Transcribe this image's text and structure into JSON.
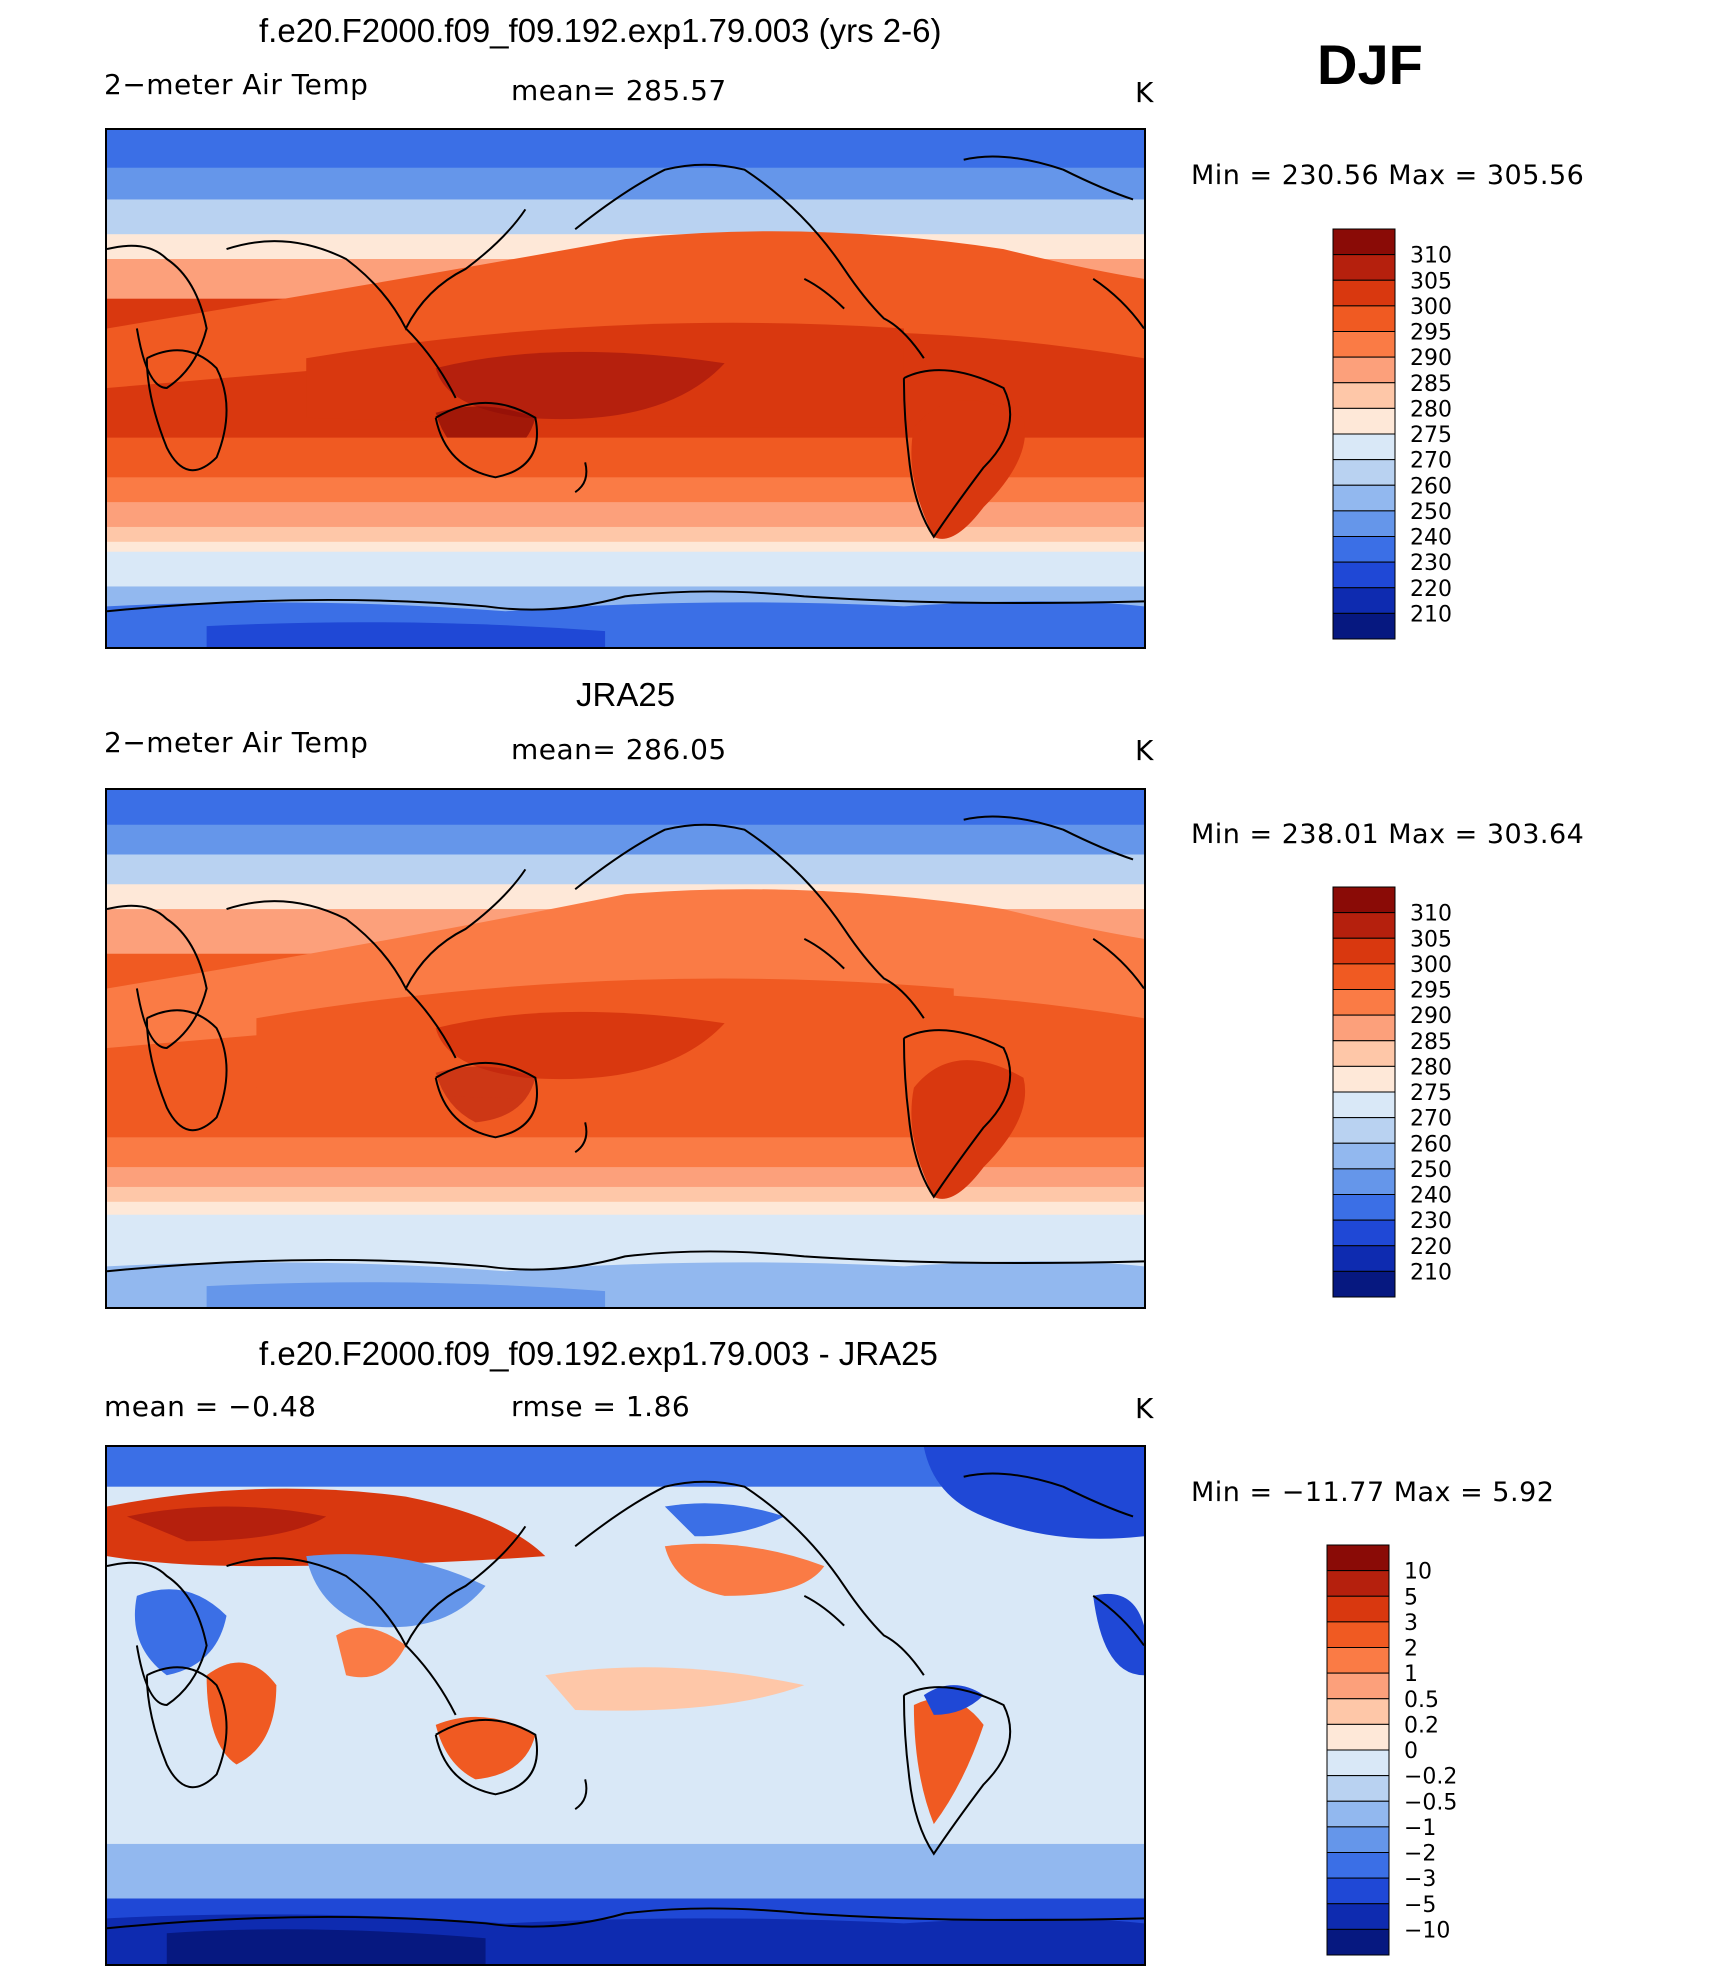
{
  "season": "DJF",
  "panels": [
    {
      "title": "f.e20.F2000.f09_f09.192.exp1.79.003 (yrs 2-6)",
      "left_label": "2−meter Air Temp",
      "center_label": "mean=  285.57",
      "units": "K",
      "minmax": "Min  =  230.56  Max  =  305.56"
    },
    {
      "title": "JRA25",
      "left_label": "2−meter Air Temp",
      "center_label": "mean=  286.05",
      "units": "K",
      "minmax": "Min  =  238.01  Max  =  303.64"
    },
    {
      "title": "f.e20.F2000.f09_f09.192.exp1.79.003 - JRA25",
      "left_label": "mean  =     −0.48",
      "center_label": "rmse  =     1.86",
      "units": "K",
      "minmax": "Min  =  −11.77  Max  =       5.92"
    }
  ],
  "colorbars": {
    "absolute": {
      "labels": [
        "310",
        "305",
        "300",
        "295",
        "290",
        "285",
        "280",
        "275",
        "270",
        "260",
        "250",
        "240",
        "230",
        "220",
        "210"
      ],
      "colors": [
        "#8a0b06",
        "#b5200d",
        "#d9380f",
        "#f05a22",
        "#fa7b45",
        "#fca07b",
        "#fec7a8",
        "#fee8d8",
        "#d9e8f7",
        "#b9d2f1",
        "#92b8ef",
        "#6596ea",
        "#3b6fe6",
        "#1f48d6",
        "#0e2bb0",
        "#061880"
      ]
    },
    "difference": {
      "labels": [
        "10",
        "5",
        "3",
        "2",
        "1",
        "0.5",
        "0.2",
        "0",
        "−0.2",
        "−0.5",
        "−1",
        "−2",
        "−3",
        "−5",
        "−10"
      ],
      "colors": [
        "#8a0b06",
        "#b5200d",
        "#d9380f",
        "#f05a22",
        "#fa7b45",
        "#fca07b",
        "#fec7a8",
        "#fee8d8",
        "#d9e8f7",
        "#b9d2f1",
        "#92b8ef",
        "#6596ea",
        "#3b6fe6",
        "#1f48d6",
        "#0e2bb0",
        "#061880"
      ]
    }
  }
}
